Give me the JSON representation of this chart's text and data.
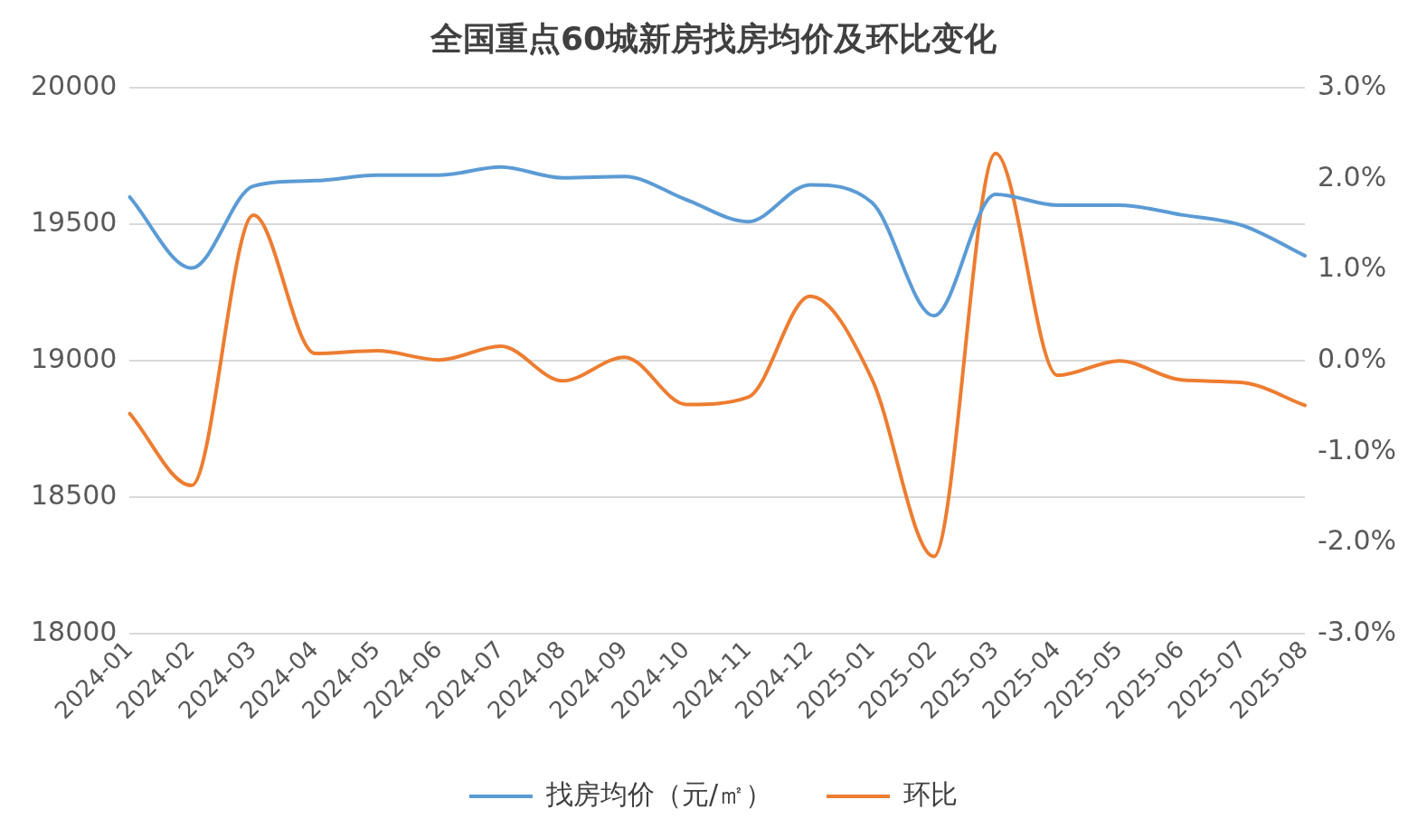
{
  "chart_data": {
    "type": "line",
    "title": "全国重点60城新房找房均价及环比变化",
    "categories": [
      "2024-01",
      "2024-02",
      "2024-03",
      "2024-04",
      "2024-05",
      "2024-06",
      "2024-07",
      "2024-08",
      "2024-09",
      "2024-10",
      "2024-11",
      "2024-12",
      "2025-01",
      "2025-02",
      "2025-03",
      "2025-04",
      "2025-05",
      "2025-06",
      "2025-07",
      "2025-08"
    ],
    "series": [
      {
        "name": "找房均价（元/㎡）",
        "color": "#5b9bd5",
        "values": [
          19600,
          19340,
          19640,
          19660,
          19680,
          19680,
          19710,
          19670,
          19675,
          19590,
          19510,
          19645,
          19580,
          19165,
          19610,
          19570,
          19570,
          19535,
          19495,
          19385
        ]
      },
      {
        "name": "环比",
        "color": "#ed7d31",
        "axis": "y2",
        "values": [
          -0.58,
          -1.37,
          1.6,
          0.08,
          0.11,
          0.01,
          0.16,
          -0.22,
          0.04,
          -0.48,
          -0.4,
          0.71,
          -0.2,
          -2.15,
          2.28,
          -0.16,
          0.0,
          -0.21,
          -0.24,
          -0.49
        ]
      }
    ],
    "ylim": [
      18000,
      20000
    ],
    "yticks": [
      18000,
      18500,
      19000,
      19500,
      20000
    ],
    "y2lim": [
      -3,
      3
    ],
    "y2ticks": [
      {
        "value": -3,
        "label": "-3.0%"
      },
      {
        "value": -2,
        "label": "-2.0%"
      },
      {
        "value": -1,
        "label": "-1.0%"
      },
      {
        "value": 0,
        "label": "0.0%"
      },
      {
        "value": 1,
        "label": "1.0%"
      },
      {
        "value": 2,
        "label": "2.0%"
      },
      {
        "value": 3,
        "label": "3.0%"
      }
    ],
    "grid": "y",
    "legend": "bottom",
    "marker": "none",
    "line_style": "solid"
  }
}
